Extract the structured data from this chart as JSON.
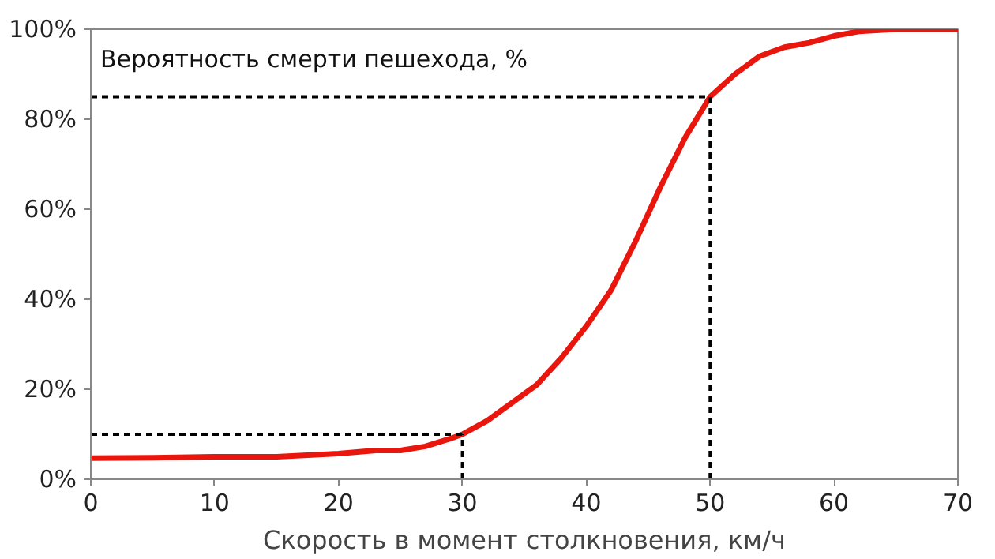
{
  "chart_data": {
    "type": "line",
    "ylabel": "Вероятность смерти пешехода, %",
    "xlabel": "Скорость в момент столкновения, км/ч",
    "x": [
      0,
      5,
      10,
      15,
      20,
      23,
      25,
      27,
      29,
      30,
      32,
      34,
      36,
      38,
      40,
      42,
      44,
      46,
      48,
      50,
      52,
      54,
      56,
      58,
      60,
      62,
      65,
      68,
      70
    ],
    "series": [
      {
        "color": "#e8160c",
        "values": [
          4.7,
          4.8,
          5,
          5,
          5.7,
          6.4,
          6.4,
          7.3,
          9,
          10,
          13,
          17,
          21,
          27,
          34,
          42,
          53,
          65,
          76,
          85,
          90,
          94,
          96,
          97,
          98.5,
          99.5,
          100,
          100,
          100
        ]
      }
    ],
    "xlim": [
      0,
      70
    ],
    "xticks": [
      0,
      10,
      20,
      30,
      40,
      50,
      60,
      70
    ],
    "ylim": [
      0,
      100
    ],
    "yticks": [
      {
        "value": 0,
        "label": "0%"
      },
      {
        "value": 20,
        "label": "20%"
      },
      {
        "value": 40,
        "label": "40%"
      },
      {
        "value": 60,
        "label": "60%"
      },
      {
        "value": 80,
        "label": "80%"
      },
      {
        "value": 100,
        "label": "100%"
      }
    ],
    "ref_lines": [
      {
        "axis": "x",
        "value": 30,
        "color": "#000000",
        "line_style": "dashed"
      },
      {
        "axis": "y",
        "value": 10,
        "color": "#000000",
        "line_style": "dashed"
      },
      {
        "axis": "x",
        "value": 50,
        "color": "#000000",
        "line_style": "dashed"
      },
      {
        "axis": "y",
        "value": 85,
        "color": "#000000",
        "line_style": "dashed"
      }
    ],
    "grid": false,
    "marker": "none",
    "line_style": "solid"
  }
}
